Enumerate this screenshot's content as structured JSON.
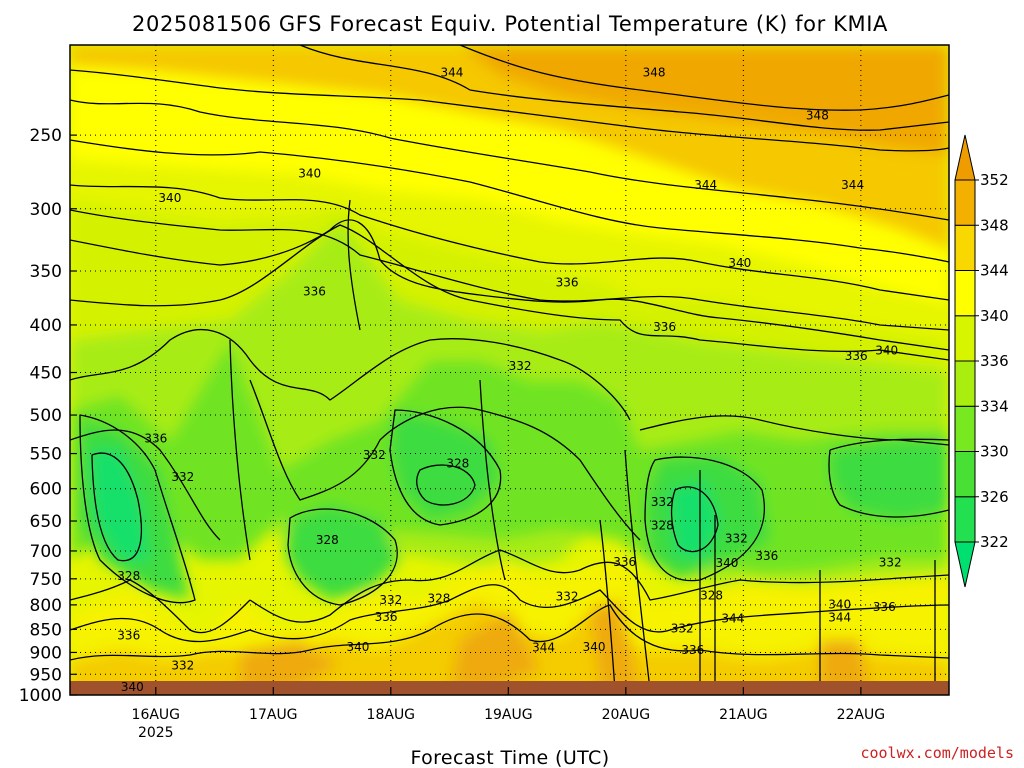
{
  "title": "2025081506 GFS Forecast Equiv. Potential Temperature (K) for KMIA",
  "credit": "coolwx.com/models",
  "chart_data": {
    "type": "heatmap",
    "title": "2025081506 GFS Forecast Equiv. Potential Temperature (K) for KMIA",
    "xlabel": "Forecast Time (UTC)",
    "ylabel": "",
    "x_ticks": [
      {
        "label": "16AUG",
        "sub": "2025",
        "value": 0
      },
      {
        "label": "17AUG",
        "sub": "",
        "value": 1
      },
      {
        "label": "18AUG",
        "sub": "",
        "value": 2
      },
      {
        "label": "19AUG",
        "sub": "",
        "value": 3
      },
      {
        "label": "20AUG",
        "sub": "",
        "value": 4
      },
      {
        "label": "21AUG",
        "sub": "",
        "value": 5
      },
      {
        "label": "22AUG",
        "sub": "",
        "value": 6
      }
    ],
    "xlim": [
      -0.73,
      6.75
    ],
    "y_scale": "log-pressure",
    "ylim": [
      1000,
      200
    ],
    "y_ticks": [
      250,
      300,
      350,
      400,
      450,
      500,
      550,
      600,
      650,
      700,
      750,
      800,
      850,
      900,
      950,
      1000
    ],
    "grid": true,
    "colorbar": {
      "levels": [
        322,
        326,
        330,
        334,
        336,
        340,
        344,
        348,
        352
      ],
      "colors": [
        "#00e070",
        "#22e050",
        "#48e034",
        "#78e820",
        "#aaee10",
        "#d8f500",
        "#ffff00",
        "#f8d800",
        "#f4b000",
        "#ee9c00"
      ]
    },
    "contour_labels": [
      {
        "t": 2.52,
        "p": 214,
        "v": 344
      },
      {
        "t": 4.24,
        "p": 214,
        "v": 348
      },
      {
        "t": 5.63,
        "p": 238,
        "v": 348
      },
      {
        "t": 4.68,
        "p": 283,
        "v": 344
      },
      {
        "t": 5.93,
        "p": 283,
        "v": 344
      },
      {
        "t": 0.12,
        "p": 292,
        "v": 340
      },
      {
        "t": 1.31,
        "p": 275,
        "v": 340
      },
      {
        "t": 4.97,
        "p": 343,
        "v": 340
      },
      {
        "t": 1.35,
        "p": 368,
        "v": 336
      },
      {
        "t": 3.5,
        "p": 360,
        "v": 336
      },
      {
        "t": 4.33,
        "p": 402,
        "v": 336
      },
      {
        "t": 5.96,
        "p": 432,
        "v": 336
      },
      {
        "t": 6.22,
        "p": 426,
        "v": 340
      },
      {
        "t": 3.1,
        "p": 443,
        "v": 332
      },
      {
        "t": 0.0,
        "p": 530,
        "v": 336
      },
      {
        "t": 0.23,
        "p": 583,
        "v": 332
      },
      {
        "t": 1.86,
        "p": 552,
        "v": 332
      },
      {
        "t": 2.57,
        "p": 564,
        "v": 328
      },
      {
        "t": 4.31,
        "p": 620,
        "v": 332
      },
      {
        "t": 4.31,
        "p": 657,
        "v": 328
      },
      {
        "t": 1.46,
        "p": 681,
        "v": 328
      },
      {
        "t": 4.94,
        "p": 679,
        "v": 332
      },
      {
        "t": 5.2,
        "p": 709,
        "v": 336
      },
      {
        "t": 6.25,
        "p": 720,
        "v": 332
      },
      {
        "t": 3.99,
        "p": 719,
        "v": 336
      },
      {
        "t": 4.86,
        "p": 721,
        "v": 340
      },
      {
        "t": -0.23,
        "p": 745,
        "v": 328
      },
      {
        "t": 4.73,
        "p": 782,
        "v": 328
      },
      {
        "t": 3.5,
        "p": 784,
        "v": 332
      },
      {
        "t": 2.0,
        "p": 790,
        "v": 332
      },
      {
        "t": 2.41,
        "p": 787,
        "v": 328
      },
      {
        "t": 5.82,
        "p": 799,
        "v": 340
      },
      {
        "t": 6.2,
        "p": 804,
        "v": 336
      },
      {
        "t": 1.96,
        "p": 824,
        "v": 336
      },
      {
        "t": 5.82,
        "p": 825,
        "v": 344
      },
      {
        "t": 4.91,
        "p": 827,
        "v": 344
      },
      {
        "t": 4.48,
        "p": 848,
        "v": 332
      },
      {
        "t": -0.23,
        "p": 863,
        "v": 336
      },
      {
        "t": 1.72,
        "p": 888,
        "v": 340
      },
      {
        "t": 3.3,
        "p": 889,
        "v": 344
      },
      {
        "t": 3.73,
        "p": 888,
        "v": 340
      },
      {
        "t": 4.57,
        "p": 895,
        "v": 336
      },
      {
        "t": 0.23,
        "p": 930,
        "v": 332
      },
      {
        "t": -0.2,
        "p": 980,
        "v": 340
      }
    ]
  }
}
